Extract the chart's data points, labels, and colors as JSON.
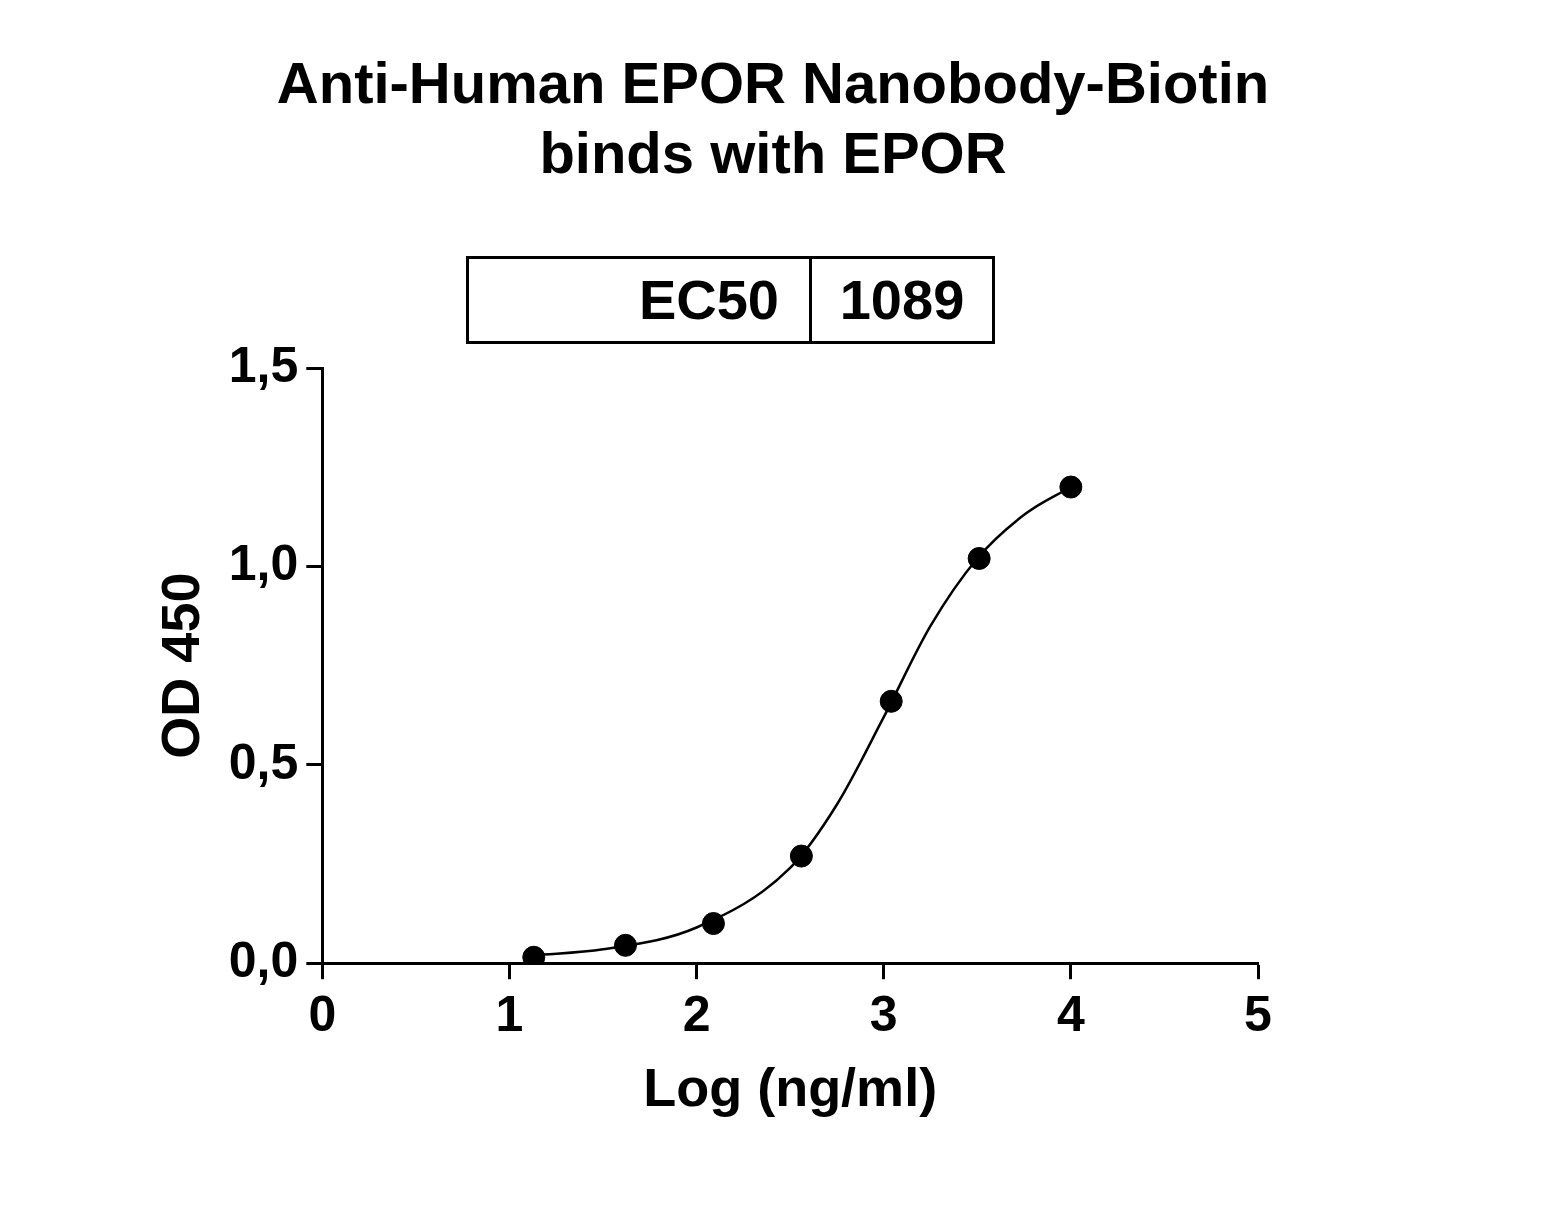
{
  "chart_data": {
    "type": "scatter",
    "title": "Anti-Human EPOR Nanobody-Biotin binds with EPOR",
    "xlabel": "Log (ng/ml)",
    "ylabel": "OD 450",
    "annotations": [
      "EC50",
      "1089"
    ],
    "xlim": [
      0,
      5
    ],
    "xticks": [
      0,
      1,
      2,
      3,
      4,
      5
    ],
    "ylim": [
      0,
      1.5
    ],
    "yticks": [
      {
        "value": 0,
        "label": "0,0"
      },
      {
        "value": 0.5,
        "label": "0,5"
      },
      {
        "value": 1,
        "label": "1,0"
      },
      {
        "value": 1.5,
        "label": "1,5"
      }
    ],
    "grid": false,
    "legend": false,
    "series": [
      {
        "marker": "circle",
        "color": "#000000",
        "x": [
          1.13,
          1.62,
          2.09,
          2.56,
          3.04,
          3.51,
          4.0
        ],
        "values": [
          0.015,
          0.045,
          0.1,
          0.27,
          0.66,
          1.02,
          1.2
        ]
      },
      {
        "type": "line",
        "marker": "none",
        "color": "#000000",
        "x": [
          1.13,
          1.5,
          2.0,
          2.5,
          2.75,
          3.0,
          3.25,
          3.5,
          3.75,
          4.0
        ],
        "values": [
          0.02,
          0.035,
          0.09,
          0.24,
          0.4,
          0.62,
          0.85,
          1.02,
          1.13,
          1.2
        ]
      }
    ]
  }
}
